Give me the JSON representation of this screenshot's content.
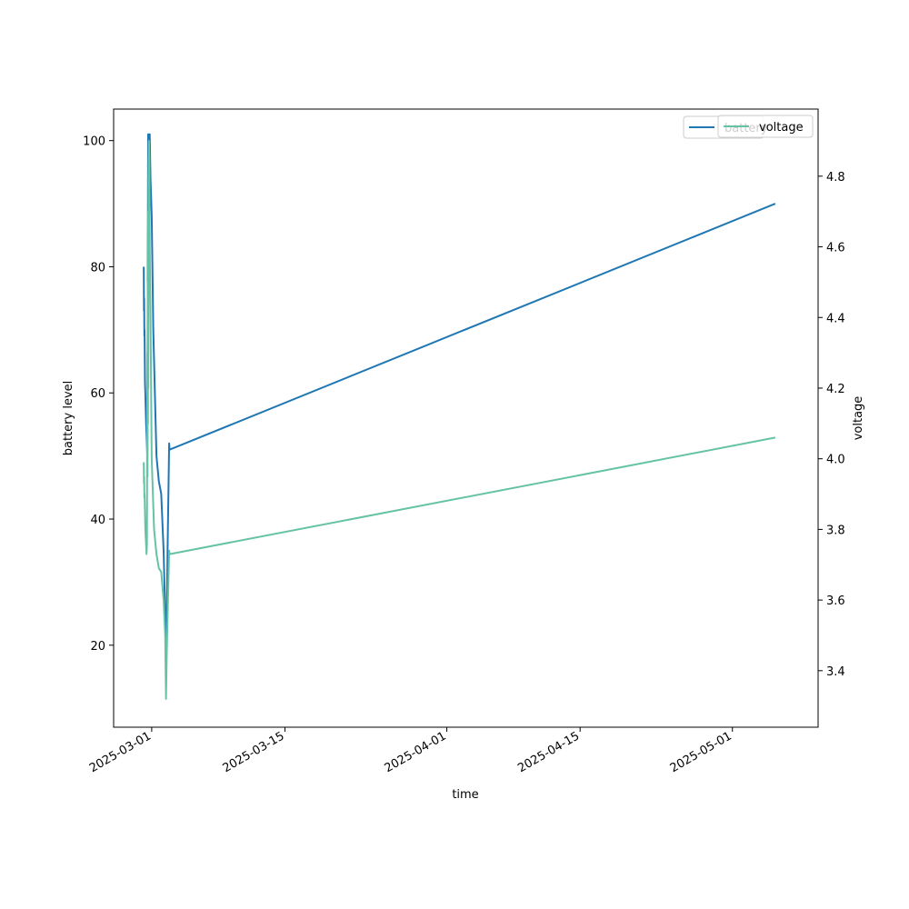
{
  "chart_data": {
    "type": "line",
    "xlabel": "time",
    "ylabel_left": "battery level",
    "ylabel_right": "voltage",
    "x_ticks": [
      "2025-03-01",
      "2025-03-15",
      "2025-04-01",
      "2025-04-15",
      "2025-05-01"
    ],
    "y_left_ticks": [
      20,
      40,
      60,
      80,
      100
    ],
    "y_right_ticks": [
      3.4,
      3.6,
      3.8,
      4.0,
      4.2,
      4.4,
      4.6,
      4.8
    ],
    "x_range": [
      "2025-02-25T00:00",
      "2025-05-10T00:00"
    ],
    "y_left_range": [
      7,
      105
    ],
    "y_right_range": [
      3.24,
      4.99
    ],
    "legend": {
      "placement": "top-right",
      "entries": [
        "battery",
        "voltage"
      ]
    },
    "colors": {
      "battery": "#1f77b4",
      "voltage": "#66c2a5"
    },
    "series": [
      {
        "name": "battery",
        "axis": "left",
        "points": [
          [
            "2025-02-28T04:00",
            80
          ],
          [
            "2025-02-28T04:30",
            73
          ],
          [
            "2025-02-28T05:00",
            75
          ],
          [
            "2025-02-28T05:30",
            69
          ],
          [
            "2025-02-28T06:00",
            70
          ],
          [
            "2025-02-28T07:00",
            62
          ],
          [
            "2025-02-28T10:00",
            55
          ],
          [
            "2025-02-28T13:00",
            50
          ],
          [
            "2025-02-28T15:00",
            101
          ],
          [
            "2025-02-28T17:00",
            101
          ],
          [
            "2025-02-28T19:00",
            101
          ],
          [
            "2025-02-28T21:00",
            94
          ],
          [
            "2025-03-01T00:00",
            88
          ],
          [
            "2025-03-01T04:00",
            70
          ],
          [
            "2025-03-01T08:00",
            60
          ],
          [
            "2025-03-01T12:00",
            50
          ],
          [
            "2025-03-01T18:00",
            46
          ],
          [
            "2025-03-02T00:00",
            44
          ],
          [
            "2025-03-02T06:00",
            35
          ],
          [
            "2025-03-02T08:00",
            30
          ],
          [
            "2025-03-02T10:00",
            25
          ],
          [
            "2025-03-02T13:00",
            20
          ],
          [
            "2025-03-02T16:00",
            35
          ],
          [
            "2025-03-02T20:00",
            52
          ],
          [
            "2025-03-02T21:00",
            51
          ],
          [
            "2025-05-05T12:00",
            90
          ]
        ]
      },
      {
        "name": "voltage",
        "axis": "right",
        "points": [
          [
            "2025-02-28T04:00",
            3.99
          ],
          [
            "2025-02-28T04:30",
            3.93
          ],
          [
            "2025-02-28T05:00",
            3.95
          ],
          [
            "2025-02-28T05:30",
            3.89
          ],
          [
            "2025-02-28T06:00",
            3.9
          ],
          [
            "2025-02-28T08:00",
            3.8
          ],
          [
            "2025-02-28T11:00",
            3.73
          ],
          [
            "2025-02-28T12:00",
            3.76
          ],
          [
            "2025-02-28T13:00",
            4.3
          ],
          [
            "2025-02-28T13:30",
            3.95
          ],
          [
            "2025-02-28T14:00",
            4.5
          ],
          [
            "2025-02-28T14:30",
            4.1
          ],
          [
            "2025-02-28T15:00",
            4.7
          ],
          [
            "2025-02-28T15:30",
            4.2
          ],
          [
            "2025-02-28T16:00",
            4.8
          ],
          [
            "2025-02-28T17:00",
            4.9
          ],
          [
            "2025-02-28T18:00",
            4.85
          ],
          [
            "2025-02-28T19:00",
            4.6
          ],
          [
            "2025-02-28T21:00",
            4.4
          ],
          [
            "2025-03-01T00:00",
            4.0
          ],
          [
            "2025-03-01T06:00",
            3.8
          ],
          [
            "2025-03-01T12:00",
            3.73
          ],
          [
            "2025-03-01T18:00",
            3.69
          ],
          [
            "2025-03-02T00:00",
            3.68
          ],
          [
            "2025-03-02T06:00",
            3.6
          ],
          [
            "2025-03-02T10:00",
            3.5
          ],
          [
            "2025-03-02T12:00",
            3.32
          ],
          [
            "2025-03-02T14:00",
            3.45
          ],
          [
            "2025-03-02T17:00",
            3.6
          ],
          [
            "2025-03-02T20:00",
            3.74
          ],
          [
            "2025-03-02T21:00",
            3.73
          ],
          [
            "2025-05-05T12:00",
            4.06
          ]
        ]
      }
    ]
  }
}
